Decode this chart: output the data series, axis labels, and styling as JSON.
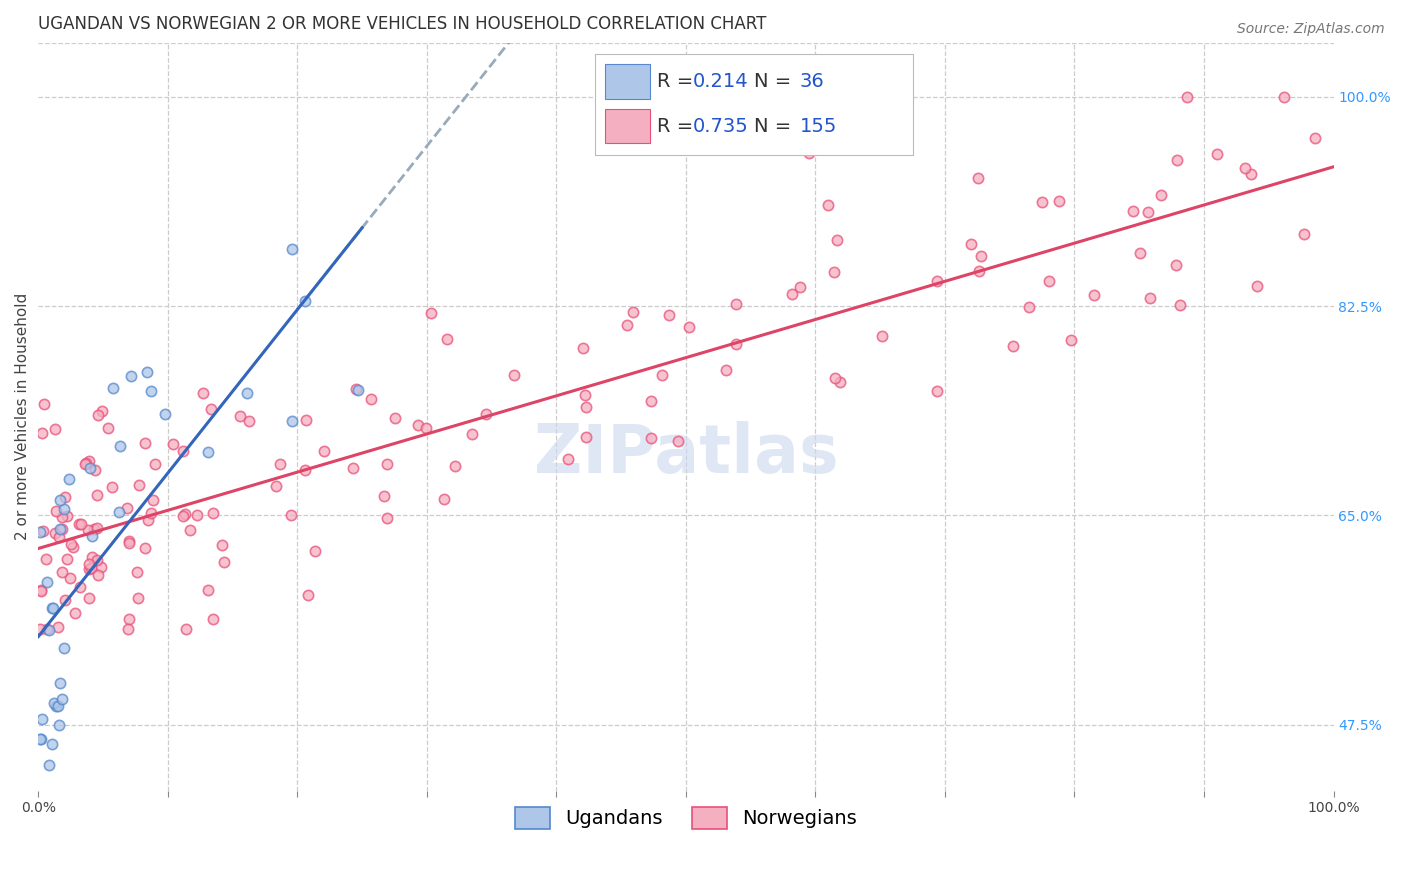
{
  "title": "UGANDAN VS NORWEGIAN 2 OR MORE VEHICLES IN HOUSEHOLD CORRELATION CHART",
  "source": "Source: ZipAtlas.com",
  "ylabel": "2 or more Vehicles in Household",
  "xlabel": "",
  "ugandan_R": 0.214,
  "ugandan_N": 36,
  "norwegian_R": 0.735,
  "norwegian_N": 155,
  "ugandan_fill_color": "#aec6e8",
  "norwegian_fill_color": "#f4afc0",
  "ugandan_edge_color": "#5588cc",
  "norwegian_edge_color": "#e8507a",
  "ugandan_line_color": "#3366bb",
  "norwegian_line_color": "#dd4466",
  "trendline_dashed_color": "#99aabb",
  "legend_R_color": "#2255cc",
  "legend_N_color": "#2255cc",
  "watermark_color": "#ccd8ee",
  "right_tick_color": "#3399ff",
  "title_fontsize": 12,
  "source_fontsize": 10,
  "axis_label_fontsize": 11,
  "tick_fontsize": 10,
  "legend_fontsize": 14,
  "xlim": [
    0.0,
    1.0
  ],
  "ylim": [
    0.42,
    1.045
  ],
  "xticks": [
    0.0,
    0.1,
    0.2,
    0.3,
    0.4,
    0.5,
    0.6,
    0.7,
    0.8,
    0.9,
    1.0
  ],
  "xticklabels": [
    "0.0%",
    "",
    "",
    "",
    "",
    "",
    "",
    "",
    "",
    "",
    "100.0%"
  ],
  "yticks_right": [
    0.475,
    0.65,
    0.825,
    1.0
  ],
  "yticklabels_right": [
    "47.5%",
    "65.0%",
    "82.5%",
    "100.0%"
  ],
  "grid_color": "#cccccc",
  "grid_linestyle": "--",
  "background_color": "#ffffff",
  "scatter_alpha": 0.75,
  "marker_size": 55,
  "marker_lw": 1.2
}
